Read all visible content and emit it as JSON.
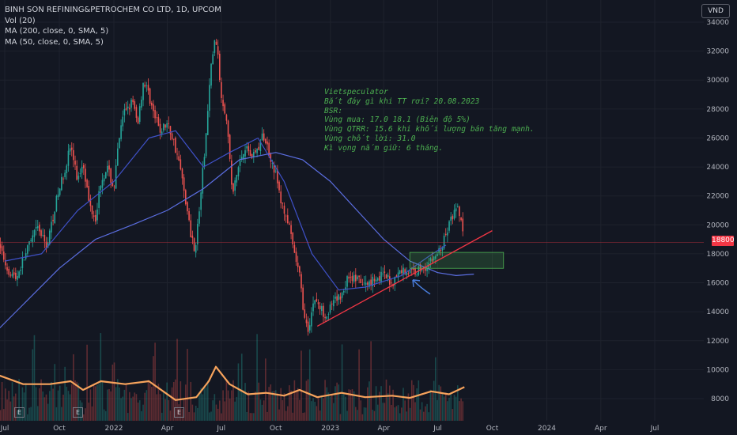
{
  "legend": {
    "title": "BINH SON REFINING&PETROCHEM CO LTD, 1D, UPCOM",
    "vol": "Vol (20)",
    "ma200": "MA (200, close, 0, SMA, 5)",
    "ma50": "MA (50, close, 0, SMA, 5)"
  },
  "currency": "VND",
  "note": {
    "lines": [
      "Vietspeculator",
      "Bắt đáy gì khi TT rơi? 20.08.2023",
      "",
      "BSR:",
      "Vùng mua: 17.0 18.1 (Biên độ 5%)",
      "Vùng QTRR: 15.6 khi khối lượng bán tăng mạnh.",
      "Vùng chốt lời: 31.0",
      "Kì vọng nắm giữ: 6 tháng."
    ]
  },
  "last_price_label": "18800",
  "event_markers": [
    "E",
    "E",
    "E"
  ],
  "colors": {
    "up": "#26a69a",
    "down": "#ef5350",
    "ma200": "#5b6ee1",
    "ma50": "#3f51c8",
    "volume_ma": "#f7a35c",
    "trendline": "#f23645",
    "zone": "#4caf50",
    "note_text": "#4caf50",
    "arrow": "#4a7fe0"
  },
  "chart_data": {
    "type": "line",
    "subtype": "candlestick",
    "x_ticks": [
      "Jul",
      "Oct",
      "2022",
      "Apr",
      "Jul",
      "Oct",
      "2023",
      "Apr",
      "Jul",
      "Oct",
      "2024",
      "Apr",
      "Jul"
    ],
    "x_tick_dates": [
      "2021-07-01",
      "2021-10-01",
      "2022-01-01",
      "2022-04-01",
      "2022-07-01",
      "2022-10-01",
      "2023-01-01",
      "2023-04-01",
      "2023-07-01",
      "2023-10-01",
      "2024-01-01",
      "2024-04-01",
      "2024-07-01"
    ],
    "y_ticks": [
      8000,
      10000,
      12000,
      14000,
      16000,
      18000,
      20000,
      22000,
      24000,
      26000,
      28000,
      30000,
      32000,
      34000
    ],
    "ylim": [
      7200,
      34800
    ],
    "last_price": 18800,
    "price_path": [
      [
        "2021-06-15",
        19500
      ],
      [
        "2021-07-05",
        17000
      ],
      [
        "2021-07-20",
        16300
      ],
      [
        "2021-08-05",
        18000
      ],
      [
        "2021-08-25",
        19800
      ],
      [
        "2021-09-10",
        18500
      ],
      [
        "2021-09-25",
        21500
      ],
      [
        "2021-10-10",
        23800
      ],
      [
        "2021-10-20",
        25500
      ],
      [
        "2021-11-01",
        23000
      ],
      [
        "2021-11-10",
        24500
      ],
      [
        "2021-11-20",
        21500
      ],
      [
        "2021-12-01",
        20500
      ],
      [
        "2021-12-10",
        23000
      ],
      [
        "2021-12-20",
        24000
      ],
      [
        "2022-01-01",
        22500
      ],
      [
        "2022-01-10",
        26000
      ],
      [
        "2022-01-20",
        28000
      ],
      [
        "2022-02-01",
        28500
      ],
      [
        "2022-02-10",
        27000
      ],
      [
        "2022-02-20",
        30000
      ],
      [
        "2022-03-01",
        29000
      ],
      [
        "2022-03-10",
        27500
      ],
      [
        "2022-03-20",
        26500
      ],
      [
        "2022-04-01",
        27000
      ],
      [
        "2022-04-10",
        26000
      ],
      [
        "2022-04-20",
        24500
      ],
      [
        "2022-05-01",
        22000
      ],
      [
        "2022-05-10",
        19500
      ],
      [
        "2022-05-18",
        18300
      ],
      [
        "2022-05-25",
        21000
      ],
      [
        "2022-06-05",
        26000
      ],
      [
        "2022-06-15",
        31500
      ],
      [
        "2022-06-22",
        33000
      ],
      [
        "2022-07-01",
        29000
      ],
      [
        "2022-07-10",
        27500
      ],
      [
        "2022-07-20",
        22000
      ],
      [
        "2022-07-30",
        24000
      ],
      [
        "2022-08-10",
        25500
      ],
      [
        "2022-08-20",
        24800
      ],
      [
        "2022-09-01",
        25200
      ],
      [
        "2022-09-10",
        26200
      ],
      [
        "2022-09-20",
        25000
      ],
      [
        "2022-10-01",
        23500
      ],
      [
        "2022-10-10",
        21500
      ],
      [
        "2022-10-20",
        20500
      ],
      [
        "2022-11-01",
        18000
      ],
      [
        "2022-11-10",
        16500
      ],
      [
        "2022-11-20",
        13000
      ],
      [
        "2022-11-25",
        12800
      ],
      [
        "2022-12-05",
        15000
      ],
      [
        "2022-12-15",
        14200
      ],
      [
        "2022-12-25",
        13800
      ],
      [
        "2023-01-05",
        14500
      ],
      [
        "2023-01-20",
        15200
      ],
      [
        "2023-02-01",
        16500
      ],
      [
        "2023-02-15",
        16200
      ],
      [
        "2023-03-01",
        15800
      ],
      [
        "2023-03-15",
        16300
      ],
      [
        "2023-04-01",
        16500
      ],
      [
        "2023-04-15",
        16000
      ],
      [
        "2023-05-01",
        16900
      ],
      [
        "2023-05-15",
        16700
      ],
      [
        "2023-06-01",
        16900
      ],
      [
        "2023-06-15",
        17300
      ],
      [
        "2023-07-01",
        18000
      ],
      [
        "2023-07-10",
        18700
      ],
      [
        "2023-07-20",
        20000
      ],
      [
        "2023-07-28",
        20800
      ],
      [
        "2023-08-05",
        21000
      ],
      [
        "2023-08-10",
        20200
      ],
      [
        "2023-08-15",
        18800
      ]
    ],
    "series": [
      {
        "name": "MA (200, close, 0, SMA, 5)",
        "points": [
          [
            "2021-06-01",
            12000
          ],
          [
            "2021-08-01",
            14500
          ],
          [
            "2021-10-01",
            17000
          ],
          [
            "2021-12-01",
            19000
          ],
          [
            "2022-02-01",
            20000
          ],
          [
            "2022-04-01",
            21000
          ],
          [
            "2022-06-01",
            22500
          ],
          [
            "2022-08-01",
            24500
          ],
          [
            "2022-10-01",
            25000
          ],
          [
            "2022-11-15",
            24500
          ],
          [
            "2023-01-01",
            23000
          ],
          [
            "2023-02-15",
            21000
          ],
          [
            "2023-04-01",
            19000
          ],
          [
            "2023-05-15",
            17500
          ],
          [
            "2023-07-01",
            16700
          ],
          [
            "2023-08-01",
            16500
          ],
          [
            "2023-08-31",
            16600
          ]
        ]
      },
      {
        "name": "MA (50, close, 0, SMA, 5)",
        "points": [
          [
            "2021-07-01",
            17500
          ],
          [
            "2021-09-01",
            18000
          ],
          [
            "2021-11-01",
            21000
          ],
          [
            "2022-01-01",
            23000
          ],
          [
            "2022-03-01",
            26000
          ],
          [
            "2022-04-15",
            26500
          ],
          [
            "2022-06-01",
            24000
          ],
          [
            "2022-07-15",
            25000
          ],
          [
            "2022-09-01",
            26000
          ],
          [
            "2022-10-15",
            23000
          ],
          [
            "2022-12-01",
            18000
          ],
          [
            "2023-01-15",
            15500
          ],
          [
            "2023-03-01",
            15700
          ],
          [
            "2023-05-01",
            16500
          ],
          [
            "2023-06-15",
            17800
          ],
          [
            "2023-07-15",
            18600
          ]
        ]
      }
    ],
    "volume_ma_path": [
      [
        "2021-06-15",
        9700
      ],
      [
        "2021-08-01",
        9000
      ],
      [
        "2021-09-15",
        9000
      ],
      [
        "2021-10-20",
        9200
      ],
      [
        "2021-11-10",
        8600
      ],
      [
        "2021-12-10",
        9200
      ],
      [
        "2022-01-20",
        9000
      ],
      [
        "2022-03-01",
        9200
      ],
      [
        "2022-04-15",
        7900
      ],
      [
        "2022-05-20",
        8100
      ],
      [
        "2022-06-10",
        9200
      ],
      [
        "2022-06-22",
        10200
      ],
      [
        "2022-07-15",
        9000
      ],
      [
        "2022-08-15",
        8300
      ],
      [
        "2022-09-15",
        8400
      ],
      [
        "2022-10-15",
        8200
      ],
      [
        "2022-11-10",
        8600
      ],
      [
        "2022-12-10",
        8100
      ],
      [
        "2023-01-20",
        8400
      ],
      [
        "2023-03-01",
        8100
      ],
      [
        "2023-04-15",
        8200
      ],
      [
        "2023-05-15",
        8050
      ],
      [
        "2023-06-20",
        8500
      ],
      [
        "2023-07-20",
        8300
      ],
      [
        "2023-08-15",
        8800
      ]
    ],
    "annotations": {
      "trendline": [
        [
          "2022-12-10",
          13000
        ],
        [
          "2023-10-01",
          19600
        ]
      ],
      "buy_zone": {
        "from": "2023-05-15",
        "to": "2023-10-20",
        "low": 17000,
        "high": 18100
      },
      "arrow_at": [
        "2023-05-20",
        16200
      ]
    }
  }
}
